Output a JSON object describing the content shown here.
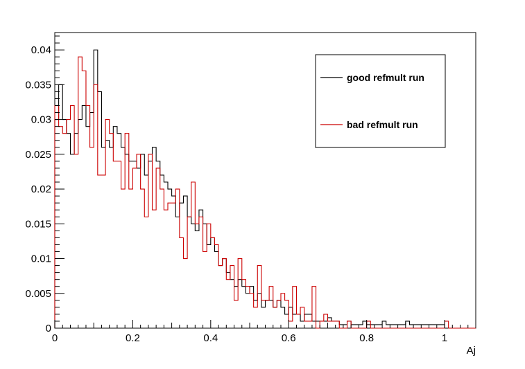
{
  "chart_data": {
    "type": "line",
    "title": "",
    "xlabel": "Aj",
    "ylabel": "",
    "xlim": [
      0,
      1.08
    ],
    "ylim": [
      0,
      0.0425
    ],
    "x_ticks": [
      "0",
      "0.2",
      "0.4",
      "0.6",
      "0.8",
      "1"
    ],
    "y_ticks": [
      "0",
      "0.005",
      "0.01",
      "0.015",
      "0.02",
      "0.025",
      "0.03",
      "0.035",
      "0.04"
    ],
    "grid": false,
    "legend_position": "top-right",
    "bin_width": 0.01,
    "series": [
      {
        "name": "good refmult run",
        "color": "#000000",
        "values": [
          0.03,
          0.035,
          0.03,
          0.028,
          0.025,
          0.028,
          0.03,
          0.032,
          0.029,
          0.031,
          0.04,
          0.034,
          0.026,
          0.027,
          0.026,
          0.029,
          0.028,
          0.026,
          0.025,
          0.024,
          0.024,
          0.023,
          0.025,
          0.022,
          0.024,
          0.026,
          0.024,
          0.022,
          0.021,
          0.02,
          0.019,
          0.016,
          0.018,
          0.019,
          0.016,
          0.015,
          0.014,
          0.017,
          0.015,
          0.012,
          0.013,
          0.011,
          0.009,
          0.01,
          0.008,
          0.007,
          0.006,
          0.007,
          0.006,
          0.005,
          0.006,
          0.004,
          0.005,
          0.003,
          0.004,
          0.004,
          0.003,
          0.004,
          0.003,
          0.002,
          0.003,
          0.002,
          0.002,
          0.001,
          0.002,
          0.002,
          0.001,
          0.001,
          0.001,
          0.001,
          0.0015,
          0.001,
          0.001,
          0.0005,
          0.0005,
          0.001,
          0.0005,
          0.0005,
          0.0005,
          0.001,
          0.0005,
          0.0005,
          0.0005,
          0.0005,
          0.001,
          0.0005,
          0.0005,
          0.0005,
          0.0005,
          0.0005,
          0.001,
          0.0005,
          0.0005,
          0.0005,
          0.0005,
          0.0005,
          0.0005,
          0.0005,
          0.0005,
          0.0005,
          0.0,
          0.0,
          0.0,
          0.0,
          0.0,
          0.0,
          0.0,
          0.0
        ]
      },
      {
        "name": "bad refmult run",
        "color": "#cc0000",
        "values": [
          0.032,
          0.029,
          0.028,
          0.03,
          0.032,
          0.025,
          0.039,
          0.037,
          0.032,
          0.026,
          0.035,
          0.022,
          0.022,
          0.03,
          0.028,
          0.024,
          0.024,
          0.02,
          0.028,
          0.02,
          0.023,
          0.025,
          0.02,
          0.016,
          0.025,
          0.017,
          0.023,
          0.02,
          0.017,
          0.018,
          0.018,
          0.02,
          0.013,
          0.01,
          0.016,
          0.021,
          0.015,
          0.016,
          0.011,
          0.015,
          0.013,
          0.012,
          0.009,
          0.01,
          0.007,
          0.009,
          0.004,
          0.01,
          0.007,
          0.006,
          0.005,
          0.003,
          0.009,
          0.004,
          0.004,
          0.006,
          0.003,
          0.004,
          0.005,
          0.004,
          0.001,
          0.006,
          0.002,
          0.003,
          0.001,
          0.001,
          0.006,
          0.0,
          0.001,
          0.002,
          0.001,
          0.001,
          0.001,
          0.0,
          0.0,
          0.001,
          0.0,
          0.0,
          0.0,
          0.0,
          0.001,
          0.0,
          0.0,
          0.0,
          0.0,
          0.0,
          0.0,
          0.0,
          0.0,
          0.0,
          0.0,
          0.0,
          0.0,
          0.0,
          0.0,
          0.0,
          0.0,
          0.0,
          0.0,
          0.0,
          0.001,
          0.0,
          0.0,
          0.0,
          0.0,
          0.0,
          0.0,
          0.0
        ]
      }
    ]
  }
}
